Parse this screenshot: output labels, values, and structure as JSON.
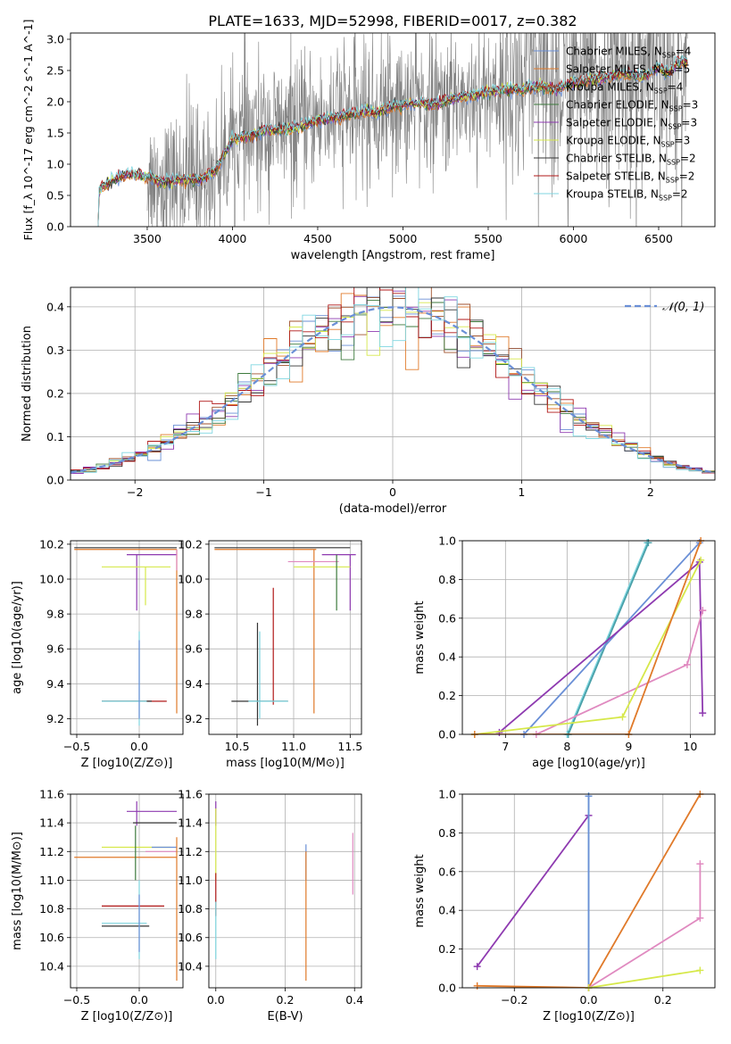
{
  "figure": {
    "title": "PLATE=1633, MJD=52998, FIBERID=0017, z=0.382"
  },
  "colors": {
    "Chabrier MILES": "#6a8fd6",
    "Salpeter MILES": "#e07a2a",
    "Kroupa MILES": "#a0522d",
    "Chabrier ELODIE": "#3d7a3d",
    "Salpeter ELODIE": "#8e3ab0",
    "Kroupa ELODIE": "#d6e84a",
    "Chabrier STELIB": "#333333",
    "Salpeter STELIB": "#b01818",
    "Kroupa STELIB": "#7fd6e0",
    "data": "#808080",
    "normal": "#6a8fd6",
    "pink": "#e08ac0"
  },
  "chart_data": [
    {
      "id": "spectrum",
      "type": "line",
      "xlabel": "wavelength [Angstrom, rest frame]",
      "ylabel": "Flux [f_λ 10^-17 erg cm^-2 s^-1 A^-1]",
      "xlim": [
        3050,
        6830
      ],
      "ylim": [
        0,
        3.1
      ],
      "xticks": [
        3500,
        4000,
        4500,
        5000,
        5500,
        6000,
        6500
      ],
      "yticks": [
        0.0,
        0.5,
        1.0,
        1.5,
        2.0,
        2.5,
        3.0
      ],
      "grid": false,
      "legend_position": "top-right",
      "legend": [
        {
          "label": "Chabrier MILES, N",
          "sub": "SSP",
          "suffix": "=4",
          "color": "#6a8fd6"
        },
        {
          "label": "Salpeter MILES, N",
          "sub": "SSP",
          "suffix": "=5",
          "color": "#e07a2a"
        },
        {
          "label": "Kroupa MILES, N",
          "sub": "SSP",
          "suffix": "=4",
          "color": "#a0522d"
        },
        {
          "label": "Chabrier ELODIE, N",
          "sub": "SSP",
          "suffix": "=3",
          "color": "#3d7a3d"
        },
        {
          "label": "Salpeter ELODIE, N",
          "sub": "SSP",
          "suffix": "=3",
          "color": "#8e3ab0"
        },
        {
          "label": "Kroupa ELODIE, N",
          "sub": "SSP",
          "suffix": "=3",
          "color": "#d6e84a"
        },
        {
          "label": "Chabrier STELIB, N",
          "sub": "SSP",
          "suffix": "=2",
          "color": "#333333"
        },
        {
          "label": "Salpeter STELIB, N",
          "sub": "SSP",
          "suffix": "=2",
          "color": "#b01818"
        },
        {
          "label": "Kroupa STELIB, N",
          "sub": "SSP",
          "suffix": "=2",
          "color": "#7fd6e0"
        }
      ],
      "model_curve": {
        "x": [
          3200,
          3220,
          3300,
          3400,
          3500,
          3600,
          3700,
          3800,
          3900,
          3950,
          4000,
          4100,
          4200,
          4300,
          4400,
          4500,
          4600,
          4700,
          4800,
          4860,
          4900,
          5000,
          5100,
          5175,
          5300,
          5400,
          5500,
          5600,
          5700,
          5800,
          5890,
          6000,
          6100,
          6200,
          6300,
          6400,
          6500,
          6563,
          6600,
          6670
        ],
        "y": [
          0.0,
          0.6,
          0.75,
          0.85,
          0.8,
          0.7,
          0.75,
          0.75,
          0.9,
          1.15,
          1.4,
          1.45,
          1.55,
          1.55,
          1.6,
          1.7,
          1.75,
          1.8,
          1.85,
          1.82,
          1.9,
          1.95,
          2.0,
          1.95,
          2.05,
          2.1,
          2.15,
          2.2,
          2.2,
          2.25,
          2.2,
          2.3,
          2.35,
          2.4,
          2.45,
          2.4,
          2.55,
          2.45,
          2.6,
          2.65
        ]
      },
      "data_range": [
        3500,
        6670
      ]
    },
    {
      "id": "residuals",
      "type": "bar",
      "xlabel": "(data-model)/error",
      "ylabel": "Normed distribution",
      "xlim": [
        -2.5,
        2.5
      ],
      "ylim": [
        0,
        0.445
      ],
      "xticks": [
        -2,
        -1,
        0,
        1,
        2
      ],
      "yticks": [
        0.0,
        0.1,
        0.2,
        0.3,
        0.4
      ],
      "grid": true,
      "legend_position": "top-right",
      "legend": [
        {
          "label": "𝒩(0, 1)",
          "color": "#6a8fd6",
          "style": "dashed"
        }
      ],
      "bin_width": 0.1
    },
    {
      "id": "age-vs-z",
      "type": "scatter",
      "xlabel": "Z [log10(Z/Z⊙)]",
      "ylabel": "age [log10(age/yr)]",
      "xlim": [
        -0.55,
        0.35
      ],
      "ylim": [
        9.11,
        10.22
      ],
      "xticks": [
        -0.5,
        0.0
      ],
      "yticks": [
        9.2,
        9.4,
        9.6,
        9.8,
        10.0,
        10.2
      ],
      "grid": true,
      "segments": [
        {
          "color": "#e07a2a",
          "x": [
            -0.52,
            0.3
          ],
          "y": [
            10.17,
            10.17
          ]
        },
        {
          "color": "#e07a2a",
          "x": [
            0.3,
            0.3
          ],
          "y": [
            9.23,
            10.17
          ]
        },
        {
          "color": "#333333",
          "x": [
            -0.52,
            0.3
          ],
          "y": [
            10.18,
            10.18
          ]
        },
        {
          "color": "#8e3ab0",
          "x": [
            -0.1,
            0.3
          ],
          "y": [
            10.14,
            10.14
          ]
        },
        {
          "color": "#8e3ab0",
          "x": [
            -0.02,
            -0.02
          ],
          "y": [
            9.82,
            10.14
          ]
        },
        {
          "color": "#d6e84a",
          "x": [
            -0.3,
            0.25
          ],
          "y": [
            10.07,
            10.07
          ]
        },
        {
          "color": "#d6e84a",
          "x": [
            0.05,
            0.05
          ],
          "y": [
            9.85,
            10.07
          ]
        },
        {
          "color": "#b01818",
          "x": [
            -0.3,
            0.22
          ],
          "y": [
            9.3,
            9.3
          ]
        },
        {
          "color": "#333333",
          "x": [
            -0.3,
            0.1
          ],
          "y": [
            9.3,
            9.3
          ]
        },
        {
          "color": "#7fd6e0",
          "x": [
            -0.3,
            0.06
          ],
          "y": [
            9.3,
            9.3
          ]
        },
        {
          "color": "#7fd6e0",
          "x": [
            0.0,
            0.0
          ],
          "y": [
            9.16,
            9.7
          ]
        },
        {
          "color": "#6a8fd6",
          "x": [
            0.0,
            0.0
          ],
          "y": [
            9.2,
            9.65
          ]
        },
        {
          "color": "#e08ac0",
          "x": [
            0.3,
            0.3
          ],
          "y": [
            10.05,
            10.17
          ]
        }
      ]
    },
    {
      "id": "age-vs-mass",
      "type": "scatter",
      "xlabel": "mass [log10(M/M⊙)]",
      "ylabel": "",
      "xlim": [
        10.25,
        11.6
      ],
      "ylim": [
        9.11,
        10.22
      ],
      "xticks": [
        10.5,
        11.0,
        11.5
      ],
      "yticks": [
        9.2,
        9.4,
        9.6,
        9.8,
        10.0,
        10.2
      ],
      "grid": true,
      "segments": [
        {
          "color": "#e07a2a",
          "x": [
            10.3,
            11.2
          ],
          "y": [
            10.17,
            10.17
          ]
        },
        {
          "color": "#e07a2a",
          "x": [
            11.18,
            11.18
          ],
          "y": [
            9.23,
            10.17
          ]
        },
        {
          "color": "#333333",
          "x": [
            10.3,
            11.5
          ],
          "y": [
            10.18,
            10.18
          ]
        },
        {
          "color": "#8e3ab0",
          "x": [
            11.25,
            11.55
          ],
          "y": [
            10.14,
            10.14
          ]
        },
        {
          "color": "#8e3ab0",
          "x": [
            11.5,
            11.5
          ],
          "y": [
            9.82,
            10.14
          ]
        },
        {
          "color": "#e08ac0",
          "x": [
            10.95,
            11.4
          ],
          "y": [
            10.1,
            10.1
          ]
        },
        {
          "color": "#d6e84a",
          "x": [
            11.0,
            11.5
          ],
          "y": [
            10.07,
            10.07
          ]
        },
        {
          "color": "#3d7a3d",
          "x": [
            11.38,
            11.38
          ],
          "y": [
            9.82,
            10.14
          ]
        },
        {
          "color": "#b01818",
          "x": [
            10.82,
            10.82
          ],
          "y": [
            9.28,
            9.95
          ]
        },
        {
          "color": "#333333",
          "x": [
            10.68,
            10.68
          ],
          "y": [
            9.16,
            9.75
          ]
        },
        {
          "color": "#7fd6e0",
          "x": [
            10.7,
            10.7
          ],
          "y": [
            9.2,
            9.7
          ]
        },
        {
          "color": "#333333",
          "x": [
            10.45,
            10.95
          ],
          "y": [
            9.3,
            9.3
          ]
        },
        {
          "color": "#7fd6e0",
          "x": [
            10.6,
            10.95
          ],
          "y": [
            9.3,
            9.3
          ]
        }
      ]
    },
    {
      "id": "weight-vs-age",
      "type": "line",
      "xlabel": "age [log10(age/yr)]",
      "ylabel": "mass weight",
      "xlim": [
        6.3,
        10.4
      ],
      "ylim": [
        0,
        1.0
      ],
      "xticks": [
        7,
        8,
        9,
        10
      ],
      "yticks": [
        0.0,
        0.2,
        0.4,
        0.6,
        0.8,
        1.0
      ],
      "grid": true,
      "series": [
        {
          "color": "#7fd6e0",
          "x": [
            8.0,
            9.3
          ],
          "y": [
            0.0,
            0.99
          ]
        },
        {
          "color": "#4aa0a8",
          "x": [
            8.02,
            9.32
          ],
          "y": [
            0.0,
            0.99
          ]
        },
        {
          "color": "#6a8fd6",
          "x": [
            7.3,
            10.15
          ],
          "y": [
            0.0,
            0.99
          ]
        },
        {
          "color": "#8e3ab0",
          "x": [
            6.9,
            10.15,
            10.2
          ],
          "y": [
            0.01,
            0.89,
            0.11
          ]
        },
        {
          "color": "#e08ac0",
          "x": [
            7.5,
            9.95,
            10.2,
            10.2
          ],
          "y": [
            0.0,
            0.36,
            0.64,
            0.64
          ]
        },
        {
          "color": "#d6e84a",
          "x": [
            6.5,
            8.9,
            10.17
          ],
          "y": [
            0.0,
            0.09,
            0.9
          ]
        },
        {
          "color": "#e07a2a",
          "x": [
            6.5,
            9.0,
            10.17
          ],
          "y": [
            0.0,
            0.0,
            1.0
          ]
        }
      ]
    },
    {
      "id": "mass-vs-z",
      "type": "scatter",
      "xlabel": "Z [log10(Z/Z⊙)]",
      "ylabel": "mass [log10(M/M⊙)]",
      "xlim": [
        -0.55,
        0.35
      ],
      "ylim": [
        10.25,
        11.6
      ],
      "xticks": [
        -0.5,
        0.0
      ],
      "yticks": [
        10.4,
        10.6,
        10.8,
        11.0,
        11.2,
        11.4,
        11.6
      ],
      "grid": true,
      "segments": [
        {
          "color": "#8e3ab0",
          "x": [
            -0.1,
            0.3
          ],
          "y": [
            11.48,
            11.48
          ]
        },
        {
          "color": "#8e3ab0",
          "x": [
            -0.02,
            -0.02
          ],
          "y": [
            11.38,
            11.55
          ]
        },
        {
          "color": "#333333",
          "x": [
            -0.05,
            0.3
          ],
          "y": [
            11.4,
            11.4
          ]
        },
        {
          "color": "#d6e84a",
          "x": [
            -0.3,
            0.25
          ],
          "y": [
            11.23,
            11.23
          ]
        },
        {
          "color": "#6a8fd6",
          "x": [
            0.1,
            0.3
          ],
          "y": [
            11.23,
            11.23
          ]
        },
        {
          "color": "#e08ac0",
          "x": [
            0.05,
            0.3
          ],
          "y": [
            11.2,
            11.2
          ]
        },
        {
          "color": "#e07a2a",
          "x": [
            -0.52,
            0.3
          ],
          "y": [
            11.16,
            11.16
          ]
        },
        {
          "color": "#e07a2a",
          "x": [
            0.3,
            0.3
          ],
          "y": [
            10.3,
            11.3
          ]
        },
        {
          "color": "#3d7a3d",
          "x": [
            -0.03,
            -0.03
          ],
          "y": [
            11.0,
            11.38
          ]
        },
        {
          "color": "#b01818",
          "x": [
            -0.3,
            0.2
          ],
          "y": [
            10.82,
            10.82
          ]
        },
        {
          "color": "#7fd6e0",
          "x": [
            -0.3,
            0.06
          ],
          "y": [
            10.7,
            10.7
          ]
        },
        {
          "color": "#333333",
          "x": [
            -0.3,
            0.08
          ],
          "y": [
            10.68,
            10.68
          ]
        },
        {
          "color": "#7fd6e0",
          "x": [
            0.0,
            0.0
          ],
          "y": [
            10.45,
            11.0
          ]
        },
        {
          "color": "#6a8fd6",
          "x": [
            0.0,
            0.0
          ],
          "y": [
            10.5,
            10.9
          ]
        }
      ]
    },
    {
      "id": "mass-vs-ebv",
      "type": "scatter",
      "xlabel": "E(B-V)",
      "ylabel": "",
      "xlim": [
        -0.02,
        0.42
      ],
      "ylim": [
        10.25,
        11.6
      ],
      "xticks": [
        0.0,
        0.2,
        0.4
      ],
      "yticks": [
        10.4,
        10.6,
        10.8,
        11.0,
        11.2,
        11.4,
        11.6
      ],
      "grid": true,
      "segments": [
        {
          "color": "#8e3ab0",
          "x": [
            0.0,
            0.0
          ],
          "y": [
            11.38,
            11.55
          ]
        },
        {
          "color": "#d6e84a",
          "x": [
            0.0,
            0.0
          ],
          "y": [
            11.0,
            11.5
          ]
        },
        {
          "color": "#b01818",
          "x": [
            0.0,
            0.0
          ],
          "y": [
            10.75,
            11.05
          ]
        },
        {
          "color": "#7fd6e0",
          "x": [
            0.0,
            0.0
          ],
          "y": [
            10.45,
            10.85
          ]
        },
        {
          "color": "#6a8fd6",
          "x": [
            0.26,
            0.26
          ],
          "y": [
            11.0,
            11.25
          ]
        },
        {
          "color": "#e07a2a",
          "x": [
            0.26,
            0.26
          ],
          "y": [
            10.3,
            11.2
          ]
        },
        {
          "color": "#e08ac0",
          "x": [
            0.395,
            0.395
          ],
          "y": [
            10.9,
            11.33
          ]
        }
      ]
    },
    {
      "id": "weight-vs-z",
      "type": "line",
      "xlabel": "Z [log10(Z/Z⊙)]",
      "ylabel": "mass weight",
      "xlim": [
        -0.34,
        0.34
      ],
      "ylim": [
        0,
        1.0
      ],
      "xticks": [
        -0.2,
        0.0,
        0.2
      ],
      "yticks": [
        0.0,
        0.2,
        0.4,
        0.6,
        0.8,
        1.0
      ],
      "grid": true,
      "series": [
        {
          "color": "#8e3ab0",
          "x": [
            -0.3,
            0.0
          ],
          "y": [
            0.11,
            0.89
          ]
        },
        {
          "color": "#7fd6e0",
          "x": [
            0.0,
            0.0
          ],
          "y": [
            0.0,
            0.99
          ]
        },
        {
          "color": "#6a8fd6",
          "x": [
            0.0,
            0.0
          ],
          "y": [
            0.0,
            0.99
          ]
        },
        {
          "color": "#e07a2a",
          "x": [
            -0.3,
            0.0,
            0.3
          ],
          "y": [
            0.01,
            0.0,
            1.0
          ]
        },
        {
          "color": "#e08ac0",
          "x": [
            0.0,
            0.3,
            0.3
          ],
          "y": [
            0.0,
            0.36,
            0.64
          ]
        },
        {
          "color": "#d6e84a",
          "x": [
            0.0,
            0.3
          ],
          "y": [
            0.0,
            0.09
          ]
        }
      ]
    }
  ]
}
